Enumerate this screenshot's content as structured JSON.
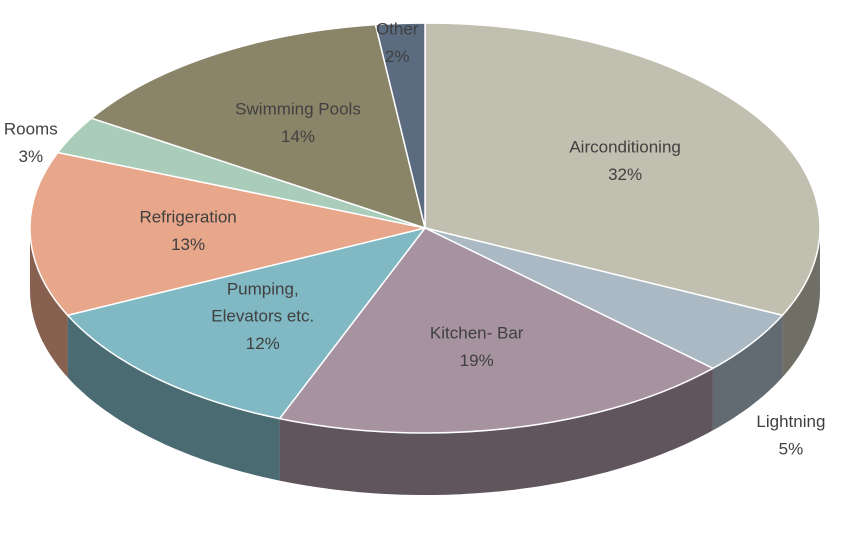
{
  "chart_data": {
    "type": "pie3d",
    "categories": [
      "Airconditioning",
      "Lightning",
      "Kitchen- Bar",
      "Pumping,\nElevators etc.",
      "Refrigeration",
      "Rooms",
      "Swimming Pools",
      "Other"
    ],
    "values": [
      32,
      5,
      19,
      12,
      13,
      3,
      14,
      2
    ],
    "value_labels": [
      "32%",
      "5%",
      "19%",
      "12%",
      "13%",
      "3%",
      "14%",
      "2%"
    ],
    "colors": [
      "#c1bfb0",
      "#aab9c3",
      "#a6939f",
      "#80b8c3",
      "#e8a68a",
      "#a9cdb8",
      "#8a8569",
      "#5b6b80"
    ]
  }
}
